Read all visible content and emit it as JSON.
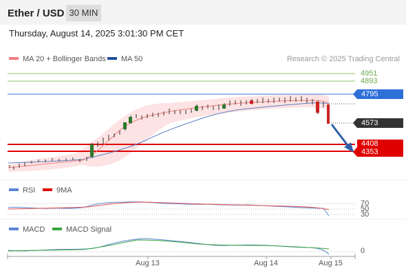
{
  "header": {
    "symbol": "Ether / USD",
    "timeframe": "30 MIN",
    "datetime": "Thursday, August 14, 2025 3:01:30 PM CET"
  },
  "legend": {
    "ma20_bb": "MA 20 + Bollinger Bands",
    "ma50": "MA 50",
    "credit": "Research © 2025 Trading Central"
  },
  "price_levels": {
    "r2": "4951",
    "r1": "4893",
    "pivot": "4795",
    "last": "4573",
    "s1": "4408",
    "s2": "4353"
  },
  "rsi_panel": {
    "label": "RSI",
    "ma_label": "9MA",
    "levels": [
      "70",
      "50",
      "30"
    ]
  },
  "macd_panel": {
    "label": "MACD",
    "signal_label": "MACD Signal",
    "zero": "0"
  },
  "x_axis": {
    "labels": [
      "Aug 13",
      "Aug 14",
      "Aug 15"
    ]
  },
  "colors": {
    "ma20": "#f08080",
    "ma50": "#1f4e96",
    "pivot": "#2e6fd8",
    "last": "#333333",
    "support": "#e00000",
    "resistance": "#7cbf54",
    "rsi": "#5b84d6",
    "macd_signal": "#3aa53a",
    "candle_up": "#2a7a2a",
    "candle_down": "#cc2222"
  },
  "chart_data": {
    "type": "line",
    "series": [
      {
        "name": "MA 50",
        "x": [
          "Aug 13",
          "Aug 14"
        ],
        "y": [
          4470,
          4760
        ]
      }
    ],
    "price_range": [
      4300,
      4980
    ],
    "levels": [
      4951,
      4893,
      4795,
      4573,
      4408,
      4353
    ]
  }
}
